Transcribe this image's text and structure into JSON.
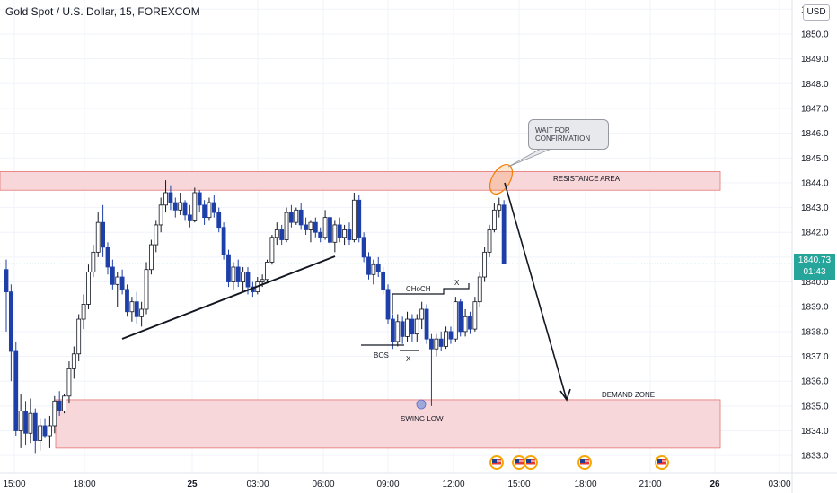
{
  "chart_title": "Gold Spot / U.S. Dollar, 15, FOREXCOM",
  "currency": "USD",
  "current_price": {
    "value": "1840.73",
    "countdown": "01:43",
    "level": 1840.73,
    "color": "#26a69a"
  },
  "colors": {
    "up": "#ffffff",
    "up_border": "#131722",
    "down": "#1e3fa8",
    "zone_fill": "#f8d7da",
    "zone_border": "#e57373",
    "grid": "#f0f3fa"
  },
  "annotations": {
    "note": "WAIT FOR CONFIRMATION",
    "resistance": "RESISTANCE AREA",
    "demand": "DEMAND ZONE",
    "choch": "CHoCH",
    "bos": "BOS",
    "x_low": "X",
    "x_high": "X",
    "swing_low": "SWING LOW"
  },
  "event_icons": [
    "us-flag-icon",
    "us-flag-icon",
    "us-flag-icon",
    "us-flag-icon",
    "us-flag-icon"
  ],
  "chart_data": {
    "type": "candlestick",
    "title": "Gold Spot / U.S. Dollar, 15, FOREXCOM",
    "x_ticks": [
      "15:00",
      "18:00",
      "25",
      "03:00",
      "06:00",
      "09:00",
      "12:00",
      "15:00",
      "18:00",
      "21:00",
      "26",
      "03:00"
    ],
    "y_ticks": [
      1833,
      1834,
      1835,
      1836,
      1837,
      1838,
      1839,
      1840,
      1841,
      1842,
      1843,
      1844,
      1845,
      1846,
      1847,
      1848,
      1849,
      1850,
      1851
    ],
    "ylim": [
      1832.5,
      1851.3
    ],
    "bar_interval_minutes": 15,
    "zones": {
      "resistance": {
        "low": 1843.7,
        "high": 1844.45,
        "label": "RESISTANCE AREA"
      },
      "demand": {
        "low": 1833.3,
        "high": 1835.25,
        "label": "DEMAND ZONE"
      }
    },
    "candles": [
      [
        1840.5,
        1840.9,
        1838.0,
        1839.6
      ],
      [
        1839.6,
        1839.9,
        1836.0,
        1837.2
      ],
      [
        1837.2,
        1837.6,
        1833.8,
        1834.0
      ],
      [
        1834.0,
        1835.5,
        1833.3,
        1834.8
      ],
      [
        1834.8,
        1835.2,
        1833.4,
        1833.9
      ],
      [
        1833.9,
        1835.3,
        1833.5,
        1834.7
      ],
      [
        1834.7,
        1834.9,
        1833.1,
        1833.6
      ],
      [
        1833.6,
        1834.5,
        1833.2,
        1834.2
      ],
      [
        1834.2,
        1834.5,
        1833.7,
        1833.8
      ],
      [
        1833.8,
        1834.6,
        1833.3,
        1834.2
      ],
      [
        1834.2,
        1835.4,
        1833.9,
        1835.2
      ],
      [
        1835.2,
        1835.6,
        1834.6,
        1834.8
      ],
      [
        1834.8,
        1835.5,
        1834.7,
        1835.4
      ],
      [
        1835.4,
        1836.8,
        1835.1,
        1836.5
      ],
      [
        1836.5,
        1837.4,
        1836.1,
        1837.1
      ],
      [
        1837.1,
        1838.7,
        1836.8,
        1838.5
      ],
      [
        1838.5,
        1839.5,
        1838.1,
        1839.1
      ],
      [
        1839.1,
        1840.7,
        1838.9,
        1840.4
      ],
      [
        1840.4,
        1841.5,
        1840.2,
        1841.2
      ],
      [
        1841.2,
        1842.8,
        1841.0,
        1842.4
      ],
      [
        1842.4,
        1843.1,
        1841.0,
        1841.4
      ],
      [
        1841.4,
        1841.6,
        1840.3,
        1840.6
      ],
      [
        1840.6,
        1840.9,
        1839.7,
        1839.9
      ],
      [
        1839.9,
        1840.4,
        1839.0,
        1840.2
      ],
      [
        1840.2,
        1840.5,
        1839.5,
        1839.7
      ],
      [
        1839.7,
        1839.9,
        1838.6,
        1838.8
      ],
      [
        1838.8,
        1839.4,
        1838.4,
        1839.2
      ],
      [
        1839.2,
        1839.6,
        1838.3,
        1838.6
      ],
      [
        1838.6,
        1839.2,
        1838.2,
        1838.9
      ],
      [
        1838.9,
        1840.8,
        1838.7,
        1840.5
      ],
      [
        1840.5,
        1841.7,
        1840.3,
        1841.5
      ],
      [
        1841.5,
        1842.5,
        1841.2,
        1842.3
      ],
      [
        1842.3,
        1843.4,
        1842.0,
        1843.1
      ],
      [
        1843.1,
        1844.1,
        1842.8,
        1843.6
      ],
      [
        1843.6,
        1843.9,
        1842.9,
        1843.2
      ],
      [
        1843.2,
        1843.4,
        1842.6,
        1842.9
      ],
      [
        1842.9,
        1843.6,
        1842.7,
        1843.2
      ],
      [
        1843.2,
        1843.3,
        1842.5,
        1842.7
      ],
      [
        1842.7,
        1843.1,
        1842.2,
        1842.5
      ],
      [
        1842.5,
        1843.8,
        1842.4,
        1843.6
      ],
      [
        1843.6,
        1843.7,
        1842.8,
        1843.1
      ],
      [
        1843.1,
        1843.3,
        1842.3,
        1842.6
      ],
      [
        1842.6,
        1843.4,
        1842.5,
        1843.2
      ],
      [
        1843.2,
        1843.5,
        1842.6,
        1842.8
      ],
      [
        1842.8,
        1843.0,
        1842.0,
        1842.2
      ],
      [
        1842.2,
        1842.4,
        1840.9,
        1841.1
      ],
      [
        1841.1,
        1841.3,
        1839.8,
        1840.0
      ],
      [
        1840.0,
        1840.8,
        1839.7,
        1840.6
      ],
      [
        1840.6,
        1840.9,
        1839.8,
        1840.0
      ],
      [
        1840.0,
        1840.6,
        1839.6,
        1840.4
      ],
      [
        1840.4,
        1840.6,
        1839.5,
        1839.8
      ],
      [
        1839.8,
        1840.0,
        1839.4,
        1839.6
      ],
      [
        1839.6,
        1840.2,
        1839.5,
        1840.0
      ],
      [
        1840.0,
        1840.3,
        1839.8,
        1840.1
      ],
      [
        1840.1,
        1840.9,
        1840.0,
        1840.8
      ],
      [
        1840.8,
        1841.9,
        1840.7,
        1841.8
      ],
      [
        1841.8,
        1842.4,
        1841.5,
        1842.1
      ],
      [
        1842.1,
        1842.3,
        1841.5,
        1841.7
      ],
      [
        1841.7,
        1843.0,
        1841.6,
        1842.8
      ],
      [
        1842.8,
        1843.1,
        1842.2,
        1842.4
      ],
      [
        1842.4,
        1843.0,
        1842.3,
        1842.9
      ],
      [
        1842.9,
        1843.2,
        1842.1,
        1842.3
      ],
      [
        1842.3,
        1842.6,
        1841.9,
        1842.1
      ],
      [
        1842.1,
        1842.5,
        1841.6,
        1842.4
      ],
      [
        1842.4,
        1842.6,
        1841.8,
        1842.0
      ],
      [
        1842.0,
        1842.2,
        1841.6,
        1841.8
      ],
      [
        1841.8,
        1842.9,
        1841.7,
        1842.6
      ],
      [
        1842.6,
        1842.8,
        1841.4,
        1841.6
      ],
      [
        1841.6,
        1842.5,
        1841.2,
        1842.3
      ],
      [
        1842.3,
        1842.6,
        1841.6,
        1841.8
      ],
      [
        1841.8,
        1842.3,
        1841.5,
        1842.1
      ],
      [
        1842.1,
        1842.4,
        1841.5,
        1841.7
      ],
      [
        1841.7,
        1843.6,
        1841.6,
        1843.3
      ],
      [
        1843.3,
        1843.5,
        1841.6,
        1841.8
      ],
      [
        1841.8,
        1842.0,
        1840.8,
        1841.0
      ],
      [
        1841.0,
        1841.2,
        1840.1,
        1840.3
      ],
      [
        1840.3,
        1840.9,
        1839.9,
        1840.7
      ],
      [
        1840.7,
        1841.0,
        1840.2,
        1840.4
      ],
      [
        1840.4,
        1840.6,
        1839.5,
        1839.7
      ],
      [
        1839.7,
        1839.9,
        1838.3,
        1838.5
      ],
      [
        1838.5,
        1838.7,
        1837.3,
        1837.6
      ],
      [
        1837.6,
        1838.7,
        1837.4,
        1838.4
      ],
      [
        1838.4,
        1838.6,
        1837.5,
        1837.8
      ],
      [
        1837.8,
        1838.8,
        1837.6,
        1838.5
      ],
      [
        1838.5,
        1838.7,
        1837.6,
        1837.9
      ],
      [
        1837.9,
        1838.7,
        1837.6,
        1838.5
      ],
      [
        1838.5,
        1839.2,
        1838.1,
        1838.9
      ],
      [
        1838.9,
        1839.1,
        1837.5,
        1837.7
      ],
      [
        1837.7,
        1837.9,
        1835.0,
        1837.3
      ],
      [
        1837.3,
        1837.9,
        1837.0,
        1837.7
      ],
      [
        1837.7,
        1838.0,
        1837.2,
        1837.4
      ],
      [
        1837.4,
        1838.2,
        1837.3,
        1838.0
      ],
      [
        1838.0,
        1838.2,
        1837.5,
        1837.7
      ],
      [
        1837.7,
        1839.4,
        1837.6,
        1839.2
      ],
      [
        1839.2,
        1839.3,
        1837.8,
        1838.0
      ],
      [
        1838.0,
        1838.9,
        1837.8,
        1838.6
      ],
      [
        1838.6,
        1838.8,
        1837.9,
        1838.1
      ],
      [
        1838.1,
        1839.4,
        1838.0,
        1839.2
      ],
      [
        1839.2,
        1840.4,
        1839.0,
        1840.2
      ],
      [
        1840.2,
        1841.4,
        1840.0,
        1841.2
      ],
      [
        1841.2,
        1842.3,
        1841.0,
        1842.1
      ],
      [
        1842.1,
        1843.2,
        1842.0,
        1842.9
      ],
      [
        1842.9,
        1843.4,
        1842.6,
        1843.1
      ],
      [
        1843.1,
        1843.3,
        1840.9,
        1840.73
      ]
    ]
  }
}
